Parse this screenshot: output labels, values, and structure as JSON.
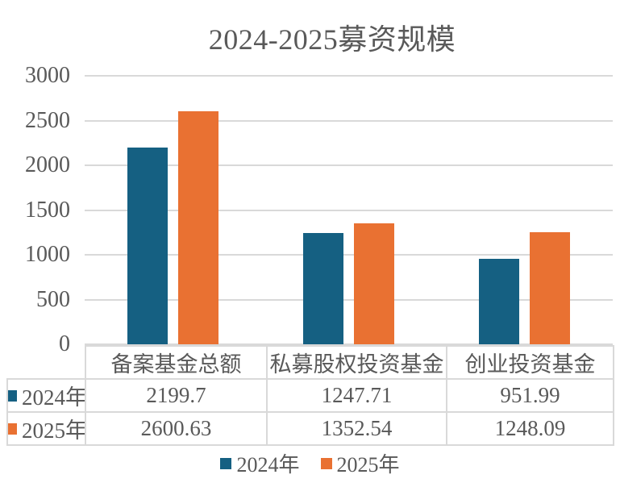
{
  "chart_data": {
    "type": "bar",
    "title": "2024-2025募资规模",
    "categories": [
      "备案基金总额",
      "私募股权投资基金",
      "创业投资基金"
    ],
    "series": [
      {
        "name": "2024年",
        "color": "#156082",
        "values": [
          2199.7,
          1247.71,
          951.99
        ]
      },
      {
        "name": "2025年",
        "color": "#E97132",
        "values": [
          2600.63,
          1352.54,
          1248.09
        ]
      }
    ],
    "xlabel": "",
    "ylabel": "",
    "ylim": [
      0,
      3000
    ],
    "y_ticks": [
      0,
      500,
      1000,
      1500,
      2000,
      2500,
      3000
    ],
    "grid": true,
    "legend_position": "bottom",
    "data_table_shown": true
  },
  "colors": {
    "series_2024": "#156082",
    "series_2025": "#E97132",
    "text": "#595959",
    "gridline": "#D9D9D9",
    "table_border": "#D9D9D9",
    "background": "#FFFFFF"
  }
}
